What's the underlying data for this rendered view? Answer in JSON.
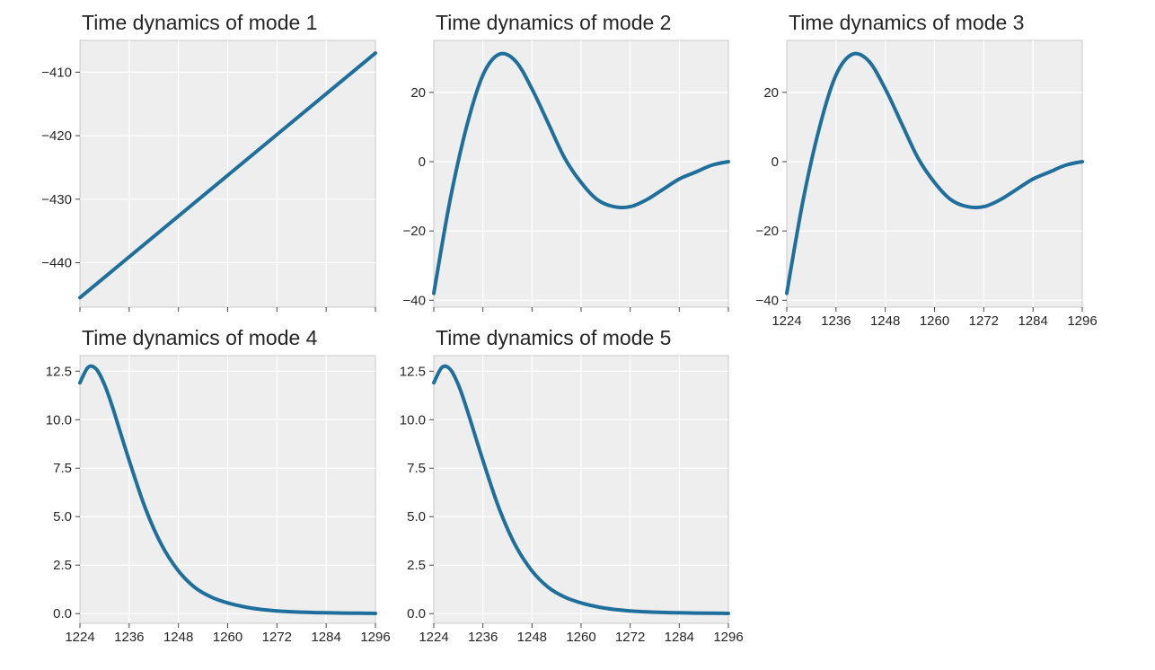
{
  "style": {
    "line_color": "#1f6f9c"
  },
  "chart_data": [
    {
      "type": "line",
      "title": "Time dynamics of mode 1",
      "x": [
        1224,
        1296
      ],
      "y": [
        -445.5,
        -407
      ],
      "xlim": [
        1224,
        1296
      ],
      "ylim": [
        -447,
        -405
      ],
      "xticks": [
        1224,
        1236,
        1248,
        1260,
        1272,
        1284,
        1296
      ],
      "xticklabels": [],
      "yticks": [
        -410,
        -420,
        -430,
        -440
      ],
      "yticklabels": [
        "−410",
        "−420",
        "−430",
        "−440"
      ],
      "grid": true
    },
    {
      "type": "line",
      "title": "Time dynamics of mode 2",
      "x": [
        1224,
        1228,
        1232,
        1236,
        1240,
        1244,
        1248,
        1252,
        1256,
        1260,
        1264,
        1268,
        1272,
        1276,
        1280,
        1284,
        1288,
        1292,
        1296
      ],
      "y": [
        -38,
        -11,
        10,
        25,
        31,
        29,
        21,
        11,
        1,
        -6,
        -11,
        -13,
        -13,
        -11,
        -8,
        -5,
        -3,
        -1,
        0
      ],
      "xlim": [
        1224,
        1296
      ],
      "ylim": [
        -42,
        35
      ],
      "xticks": [
        1224,
        1236,
        1248,
        1260,
        1272,
        1284,
        1296
      ],
      "xticklabels": [],
      "yticks": [
        20,
        0,
        -20,
        -40
      ],
      "yticklabels": [
        "20",
        "0",
        "−20",
        "−40"
      ],
      "grid": true
    },
    {
      "type": "line",
      "title": "Time dynamics of mode 3",
      "x": [
        1224,
        1228,
        1232,
        1236,
        1240,
        1244,
        1248,
        1252,
        1256,
        1260,
        1264,
        1268,
        1272,
        1276,
        1280,
        1284,
        1288,
        1292,
        1296
      ],
      "y": [
        -38,
        -11,
        10,
        25,
        31,
        29,
        21,
        11,
        1,
        -6,
        -11,
        -13,
        -13,
        -11,
        -8,
        -5,
        -3,
        -1,
        0
      ],
      "xlim": [
        1224,
        1296
      ],
      "ylim": [
        -42,
        35
      ],
      "xticks": [
        1224,
        1236,
        1248,
        1260,
        1272,
        1284,
        1296
      ],
      "xticklabels": [
        "1224",
        "1236",
        "1248",
        "1260",
        "1272",
        "1284",
        "1296"
      ],
      "yticks": [
        20,
        0,
        -20,
        -40
      ],
      "yticklabels": [
        "20",
        "0",
        "−20",
        "−40"
      ],
      "grid": true
    },
    {
      "type": "line",
      "title": "Time dynamics of mode 4",
      "x": [
        1224,
        1226,
        1228,
        1230,
        1232,
        1236,
        1240,
        1244,
        1248,
        1252,
        1256,
        1260,
        1264,
        1268,
        1272,
        1276,
        1280,
        1284,
        1288,
        1292,
        1296
      ],
      "y": [
        11.9,
        12.7,
        12.6,
        11.8,
        10.6,
        7.9,
        5.4,
        3.5,
        2.2,
        1.35,
        0.85,
        0.55,
        0.35,
        0.22,
        0.14,
        0.09,
        0.06,
        0.04,
        0.03,
        0.02,
        0.01
      ],
      "xlim": [
        1224,
        1296
      ],
      "ylim": [
        -0.5,
        13.3
      ],
      "xticks": [
        1224,
        1236,
        1248,
        1260,
        1272,
        1284,
        1296
      ],
      "xticklabels": [
        "1224",
        "1236",
        "1248",
        "1260",
        "1272",
        "1284",
        "1296"
      ],
      "yticks": [
        12.5,
        10.0,
        7.5,
        5.0,
        2.5,
        0.0
      ],
      "yticklabels": [
        "12.5",
        "10.0",
        "7.5",
        "5.0",
        "2.5",
        "0.0"
      ],
      "grid": true
    },
    {
      "type": "line",
      "title": "Time dynamics of mode 5",
      "x": [
        1224,
        1226,
        1228,
        1230,
        1232,
        1236,
        1240,
        1244,
        1248,
        1252,
        1256,
        1260,
        1264,
        1268,
        1272,
        1276,
        1280,
        1284,
        1288,
        1292,
        1296
      ],
      "y": [
        11.9,
        12.7,
        12.6,
        11.8,
        10.6,
        7.9,
        5.4,
        3.5,
        2.2,
        1.35,
        0.85,
        0.55,
        0.35,
        0.22,
        0.14,
        0.09,
        0.06,
        0.04,
        0.03,
        0.02,
        0.01
      ],
      "xlim": [
        1224,
        1296
      ],
      "ylim": [
        -0.5,
        13.3
      ],
      "xticks": [
        1224,
        1236,
        1248,
        1260,
        1272,
        1284,
        1296
      ],
      "xticklabels": [
        "1224",
        "1236",
        "1248",
        "1260",
        "1272",
        "1284",
        "1296"
      ],
      "yticks": [
        12.5,
        10.0,
        7.5,
        5.0,
        2.5,
        0.0
      ],
      "yticklabels": [
        "12.5",
        "10.0",
        "7.5",
        "5.0",
        "2.5",
        "0.0"
      ],
      "grid": true
    }
  ]
}
